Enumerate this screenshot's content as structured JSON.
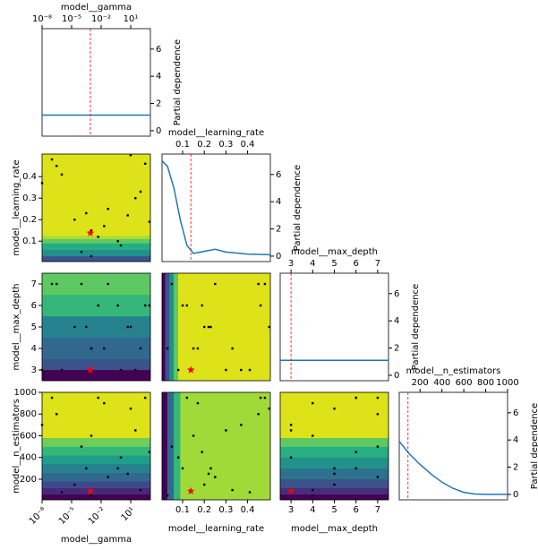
{
  "chart_data": {
    "type": "objective-matrix",
    "dimensions": [
      {
        "name": "model__gamma",
        "scale": "log",
        "lim": [
          1e-08,
          1000
        ],
        "ticks": [
          {
            "value": 1e-08,
            "label": "10⁻⁸"
          },
          {
            "value": 1e-05,
            "label": "10⁻⁵"
          },
          {
            "value": 0.01,
            "label": "10⁻²"
          },
          {
            "value": 10,
            "label": "10¹"
          }
        ]
      },
      {
        "name": "model__learning_rate",
        "scale": "linear",
        "lim": [
          0.005,
          0.505
        ],
        "ticks": [
          0.1,
          0.2,
          0.3,
          0.4
        ]
      },
      {
        "name": "model__max_depth",
        "scale": "linear",
        "lim": [
          2.5,
          7.5
        ],
        "ticks": [
          3,
          4,
          5,
          6,
          7
        ]
      },
      {
        "name": "model__n_estimators",
        "scale": "linear",
        "lim": [
          10,
          1000
        ],
        "ticks": [
          200,
          400,
          600,
          800,
          1000
        ]
      }
    ],
    "samples": [
      [
        1e-07,
        0.48,
        7,
        950
      ],
      [
        1e-06,
        0.41,
        3,
        80
      ],
      [
        0.0003,
        0.23,
        5,
        300
      ],
      [
        0.001,
        0.15,
        4,
        600
      ],
      [
        0.005,
        0.12,
        6,
        950
      ],
      [
        0.05,
        0.25,
        7,
        220
      ],
      [
        1,
        0.08,
        3,
        400
      ],
      [
        10,
        0.5,
        5,
        850
      ],
      [
        100,
        0.33,
        4,
        100
      ],
      [
        300,
        0.46,
        6,
        950
      ],
      [
        1e-08,
        0.37,
        3,
        700
      ],
      [
        2e-05,
        0.2,
        5,
        150
      ],
      [
        0.0001,
        0.05,
        7,
        500
      ],
      [
        0.02,
        0.17,
        4,
        900
      ],
      [
        0.5,
        0.1,
        6,
        300
      ],
      [
        30,
        0.3,
        3,
        650
      ],
      [
        0.001,
        0.03,
        4,
        50
      ],
      [
        3e-07,
        0.45,
        7,
        800
      ],
      [
        5,
        0.22,
        5,
        250
      ],
      [
        800,
        0.19,
        6,
        450
      ]
    ],
    "sample_color": "#000000",
    "best": [
      0.0008,
      0.138,
      3,
      90
    ],
    "best_color": "#ff0000",
    "partial_dependence": {
      "label": "Partial dependence",
      "ylim": [
        -0.4,
        7.5
      ],
      "yticks": [
        0,
        2,
        4,
        6
      ],
      "color": "#1f77b4",
      "curves": [
        {
          "x": [
            1e-08,
            1000
          ],
          "values": [
            1.15,
            1.15
          ]
        },
        {
          "x": [
            0.005,
            0.03,
            0.06,
            0.09,
            0.12,
            0.15,
            0.2,
            0.25,
            0.3,
            0.4,
            0.505
          ],
          "values": [
            7,
            6.6,
            5,
            2.6,
            0.8,
            0.2,
            0.35,
            0.5,
            0.3,
            0.15,
            0.1
          ]
        },
        {
          "x": [
            2.5,
            7.5
          ],
          "values": [
            1.1,
            1.1
          ]
        },
        {
          "x": [
            10,
            100,
            200,
            300,
            400,
            500,
            600,
            700,
            800,
            900,
            1000
          ],
          "values": [
            3.9,
            3.0,
            2.2,
            1.5,
            0.9,
            0.45,
            0.15,
            0.03,
            0,
            0,
            0
          ]
        }
      ]
    },
    "contours": [
      {
        "x_dim": 0,
        "y_dim": 1,
        "direction": "y",
        "edges": [
          0.005,
          0.03,
          0.06,
          0.09,
          0.11,
          0.125,
          0.505
        ],
        "colors": [
          "#3b528b",
          "#21918c",
          "#27ad81",
          "#5ec962",
          "#aadc32",
          "#dde318"
        ]
      },
      {
        "x_dim": 0,
        "y_dim": 2,
        "direction": "y",
        "edges": [
          2.5,
          3,
          3.5,
          4.5,
          5.5,
          6.5,
          7.5
        ],
        "colors": [
          "#440154",
          "#3b528b",
          "#31688e",
          "#26828e",
          "#35b779",
          "#5ec962"
        ]
      },
      {
        "x_dim": 1,
        "y_dim": 2,
        "direction": "x",
        "edges": [
          0.005,
          0.02,
          0.04,
          0.06,
          0.08,
          0.505
        ],
        "colors": [
          "#440154",
          "#3b528b",
          "#21918c",
          "#5ec962",
          "#dde318"
        ]
      },
      {
        "x_dim": 0,
        "y_dim": 3,
        "direction": "y",
        "edges": [
          10,
          60,
          120,
          180,
          260,
          340,
          420,
          500,
          580,
          1000
        ],
        "colors": [
          "#440154",
          "#482878",
          "#3e4989",
          "#31688e",
          "#26828e",
          "#1f9e89",
          "#35b779",
          "#6ece58",
          "#dde318"
        ]
      },
      {
        "x_dim": 1,
        "y_dim": 3,
        "direction": "x",
        "edges": [
          0.005,
          0.03,
          0.06,
          0.09,
          0.505
        ],
        "colors": [
          "#440154",
          "#31688e",
          "#35b779",
          "#a0da39"
        ]
      },
      {
        "x_dim": 2,
        "y_dim": 3,
        "direction": "y",
        "edges": [
          10,
          60,
          120,
          200,
          300,
          400,
          500,
          580,
          1000
        ],
        "colors": [
          "#440154",
          "#472d7b",
          "#3b528b",
          "#2c728e",
          "#21918c",
          "#28ae80",
          "#5ec962",
          "#dde318"
        ]
      }
    ]
  }
}
